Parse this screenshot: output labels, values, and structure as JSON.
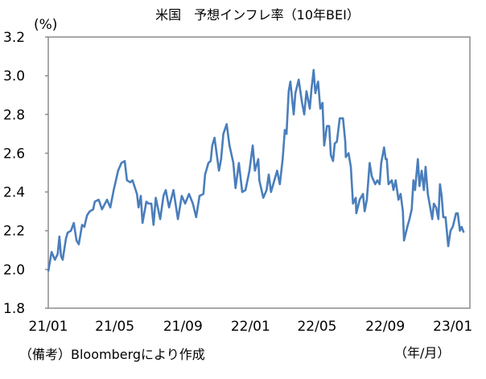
{
  "chart_data": {
    "type": "line",
    "title": "米国　予想インフレ率（10年BEI）",
    "ylabel": "(%)",
    "xlabel": "（年/月）",
    "source_note": "（備考）Bloombergにより作成",
    "ylim": [
      1.8,
      3.2
    ],
    "yticks": [
      "1.8",
      "2.0",
      "2.2",
      "2.4",
      "2.6",
      "2.8",
      "3.0",
      "3.2"
    ],
    "xlim": [
      "2021-01-01",
      "2023-02-01"
    ],
    "xticks": [
      {
        "date": "2021-01-01",
        "label": "21/01"
      },
      {
        "date": "2021-05-01",
        "label": "21/05"
      },
      {
        "date": "2021-09-01",
        "label": "21/09"
      },
      {
        "date": "2022-01-01",
        "label": "22/01"
      },
      {
        "date": "2022-05-01",
        "label": "22/05"
      },
      {
        "date": "2022-09-01",
        "label": "22/09"
      },
      {
        "date": "2023-01-01",
        "label": "23/01"
      }
    ],
    "grid": false,
    "legend": "none",
    "line_color": "#4a7ebb",
    "series": [
      {
        "x": [
          "2021-01-01",
          "2021-01-07",
          "2021-01-13",
          "2021-01-18",
          "2021-01-21",
          "2021-01-24",
          "2021-01-27",
          "2021-02-02",
          "2021-02-05",
          "2021-02-11",
          "2021-02-16",
          "2021-02-21",
          "2021-02-25",
          "2021-03-03",
          "2021-03-07",
          "2021-03-12",
          "2021-03-17",
          "2021-03-23",
          "2021-03-26",
          "2021-04-02",
          "2021-04-08",
          "2021-04-17",
          "2021-04-23",
          "2021-04-29",
          "2021-05-07",
          "2021-05-13",
          "2021-05-19",
          "2021-05-23",
          "2021-05-29",
          "2021-06-02",
          "2021-06-10",
          "2021-06-13",
          "2021-06-17",
          "2021-06-20",
          "2021-06-27",
          "2021-07-01",
          "2021-07-06",
          "2021-07-10",
          "2021-07-14",
          "2021-07-22",
          "2021-07-28",
          "2021-08-01",
          "2021-08-07",
          "2021-08-15",
          "2021-08-23",
          "2021-08-30",
          "2021-09-05",
          "2021-09-12",
          "2021-09-19",
          "2021-09-25",
          "2021-10-01",
          "2021-10-08",
          "2021-10-11",
          "2021-10-17",
          "2021-10-21",
          "2021-10-24",
          "2021-10-28",
          "2021-11-05",
          "2021-11-09",
          "2021-11-13",
          "2021-11-19",
          "2021-11-24",
          "2021-12-01",
          "2021-12-05",
          "2021-12-11",
          "2021-12-17",
          "2021-12-23",
          "2021-12-30",
          "2022-01-05",
          "2022-01-09",
          "2022-01-15",
          "2022-01-17",
          "2022-01-24",
          "2022-01-30",
          "2022-02-03",
          "2022-02-07",
          "2022-02-18",
          "2022-02-23",
          "2022-02-28",
          "2022-03-04",
          "2022-03-07",
          "2022-03-11",
          "2022-03-14",
          "2022-03-20",
          "2022-03-23",
          "2022-03-29",
          "2022-04-04",
          "2022-04-08",
          "2022-04-12",
          "2022-04-18",
          "2022-04-21",
          "2022-04-25",
          "2022-04-28",
          "2022-05-03",
          "2022-05-07",
          "2022-05-11",
          "2022-05-14",
          "2022-05-19",
          "2022-05-23",
          "2022-05-26",
          "2022-05-30",
          "2022-06-02",
          "2022-06-06",
          "2022-06-11",
          "2022-06-17",
          "2022-06-21",
          "2022-06-22",
          "2022-06-27",
          "2022-07-01",
          "2022-07-05",
          "2022-07-10",
          "2022-07-11",
          "2022-07-17",
          "2022-07-23",
          "2022-07-26",
          "2022-07-30",
          "2022-08-04",
          "2022-08-08",
          "2022-08-14",
          "2022-08-18",
          "2022-08-22",
          "2022-08-25",
          "2022-08-30",
          "2022-09-02",
          "2022-09-04",
          "2022-09-07",
          "2022-09-13",
          "2022-09-16",
          "2022-09-20",
          "2022-09-25",
          "2022-09-29",
          "2022-10-03",
          "2022-10-05",
          "2022-10-11",
          "2022-10-15",
          "2022-10-19",
          "2022-10-22",
          "2022-10-25",
          "2022-10-30",
          "2022-11-02",
          "2022-11-06",
          "2022-11-10",
          "2022-11-13",
          "2022-11-17",
          "2022-11-25",
          "2022-11-28",
          "2022-12-02",
          "2022-12-06",
          "2022-12-09",
          "2022-12-12",
          "2022-12-15",
          "2022-12-19",
          "2022-12-24",
          "2022-12-28",
          "2023-01-01",
          "2023-01-07",
          "2023-01-10",
          "2023-01-14",
          "2023-01-17",
          "2023-01-21"
        ],
        "y": [
          1.99,
          2.09,
          2.05,
          2.08,
          2.17,
          2.07,
          2.05,
          2.16,
          2.19,
          2.2,
          2.24,
          2.15,
          2.13,
          2.23,
          2.22,
          2.28,
          2.3,
          2.31,
          2.35,
          2.36,
          2.31,
          2.36,
          2.32,
          2.41,
          2.51,
          2.55,
          2.56,
          2.46,
          2.45,
          2.46,
          2.39,
          2.32,
          2.38,
          2.24,
          2.35,
          2.34,
          2.34,
          2.23,
          2.37,
          2.26,
          2.38,
          2.41,
          2.32,
          2.41,
          2.26,
          2.38,
          2.34,
          2.39,
          2.34,
          2.27,
          2.38,
          2.39,
          2.49,
          2.55,
          2.56,
          2.64,
          2.68,
          2.51,
          2.57,
          2.7,
          2.75,
          2.64,
          2.55,
          2.42,
          2.55,
          2.4,
          2.41,
          2.51,
          2.64,
          2.51,
          2.57,
          2.46,
          2.37,
          2.41,
          2.49,
          2.4,
          2.51,
          2.44,
          2.57,
          2.72,
          2.7,
          2.92,
          2.97,
          2.8,
          2.91,
          2.98,
          2.86,
          2.8,
          2.92,
          2.83,
          2.93,
          3.03,
          2.91,
          2.97,
          2.83,
          2.86,
          2.64,
          2.74,
          2.74,
          2.59,
          2.56,
          2.65,
          2.66,
          2.78,
          2.78,
          2.66,
          2.58,
          2.6,
          2.53,
          2.34,
          2.37,
          2.29,
          2.36,
          2.39,
          2.3,
          2.36,
          2.55,
          2.48,
          2.44,
          2.46,
          2.44,
          2.55,
          2.63,
          2.57,
          2.57,
          2.44,
          2.46,
          2.41,
          2.46,
          2.36,
          2.39,
          2.3,
          2.15,
          2.22,
          2.26,
          2.31,
          2.46,
          2.41,
          2.57,
          2.43,
          2.51,
          2.41,
          2.53,
          2.39,
          2.26,
          2.34,
          2.32,
          2.26,
          2.44,
          2.38,
          2.27,
          2.27,
          2.12,
          2.2,
          2.22,
          2.29,
          2.29,
          2.2,
          2.22,
          2.19
        ]
      }
    ]
  }
}
